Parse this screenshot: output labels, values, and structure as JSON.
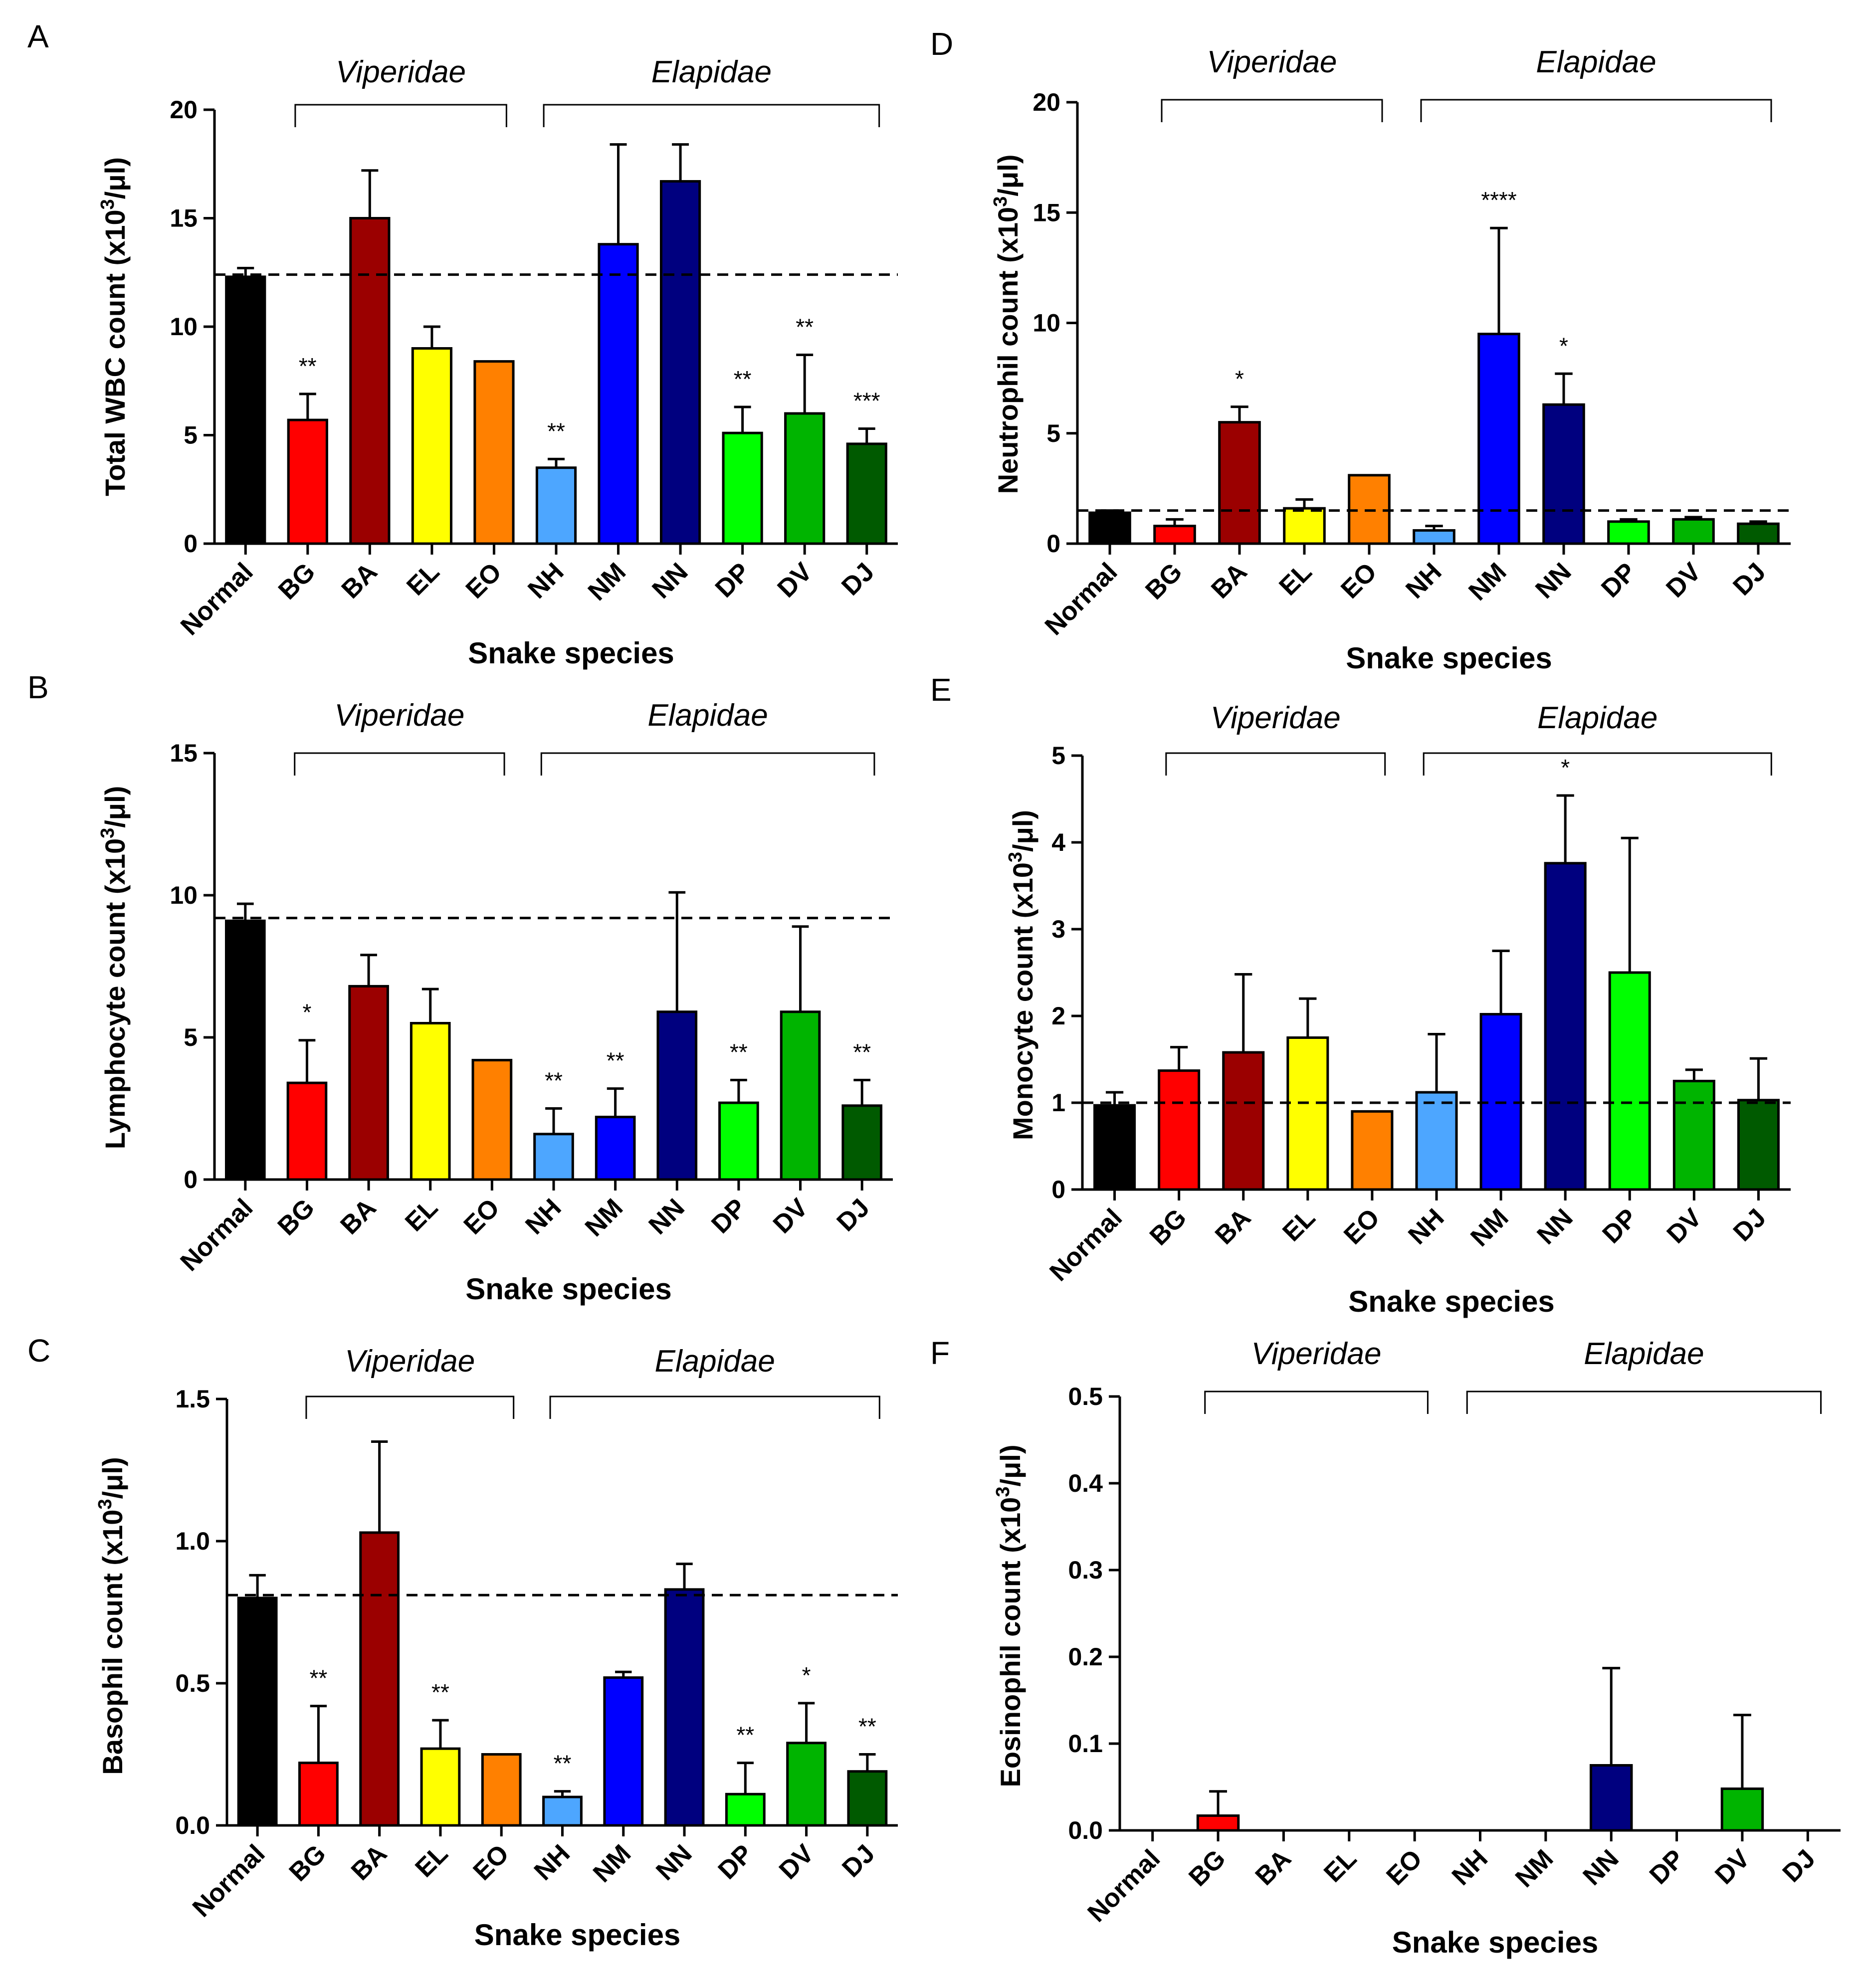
{
  "figure": {
    "categories": [
      "Normal",
      "BG",
      "BA",
      "EL",
      "EO",
      "NH",
      "NM",
      "NN",
      "DP",
      "DV",
      "DJ"
    ],
    "bar_colors": [
      "#000000",
      "#ff0000",
      "#9b0000",
      "#ffff00",
      "#ff8000",
      "#4da6ff",
      "#0000ff",
      "#00007f",
      "#00ff00",
      "#00b400",
      "#005a00"
    ],
    "x_axis_title": "Snake species",
    "families": [
      {
        "label": "Viperidae",
        "from": 1,
        "to": 4
      },
      {
        "label": "Elapidae",
        "from": 5,
        "to": 10
      }
    ]
  },
  "chart_data": [
    {
      "panel": "A",
      "type": "bar",
      "ylabel_prefix": "Total WBC count (x10",
      "ylabel_sup": "3",
      "ylabel_suffix": "/μl)",
      "ylim": [
        0,
        20
      ],
      "yticks": [
        "0",
        "5",
        "10",
        "15",
        "20"
      ],
      "reference_line": 12.4,
      "values": [
        12.3,
        5.7,
        15.0,
        9.0,
        8.4,
        3.5,
        13.8,
        16.7,
        5.1,
        6.0,
        4.6
      ],
      "errors": [
        0.4,
        1.2,
        2.2,
        1.0,
        0.0,
        0.4,
        4.6,
        1.7,
        1.2,
        2.7,
        0.7
      ],
      "significance": [
        "",
        "**",
        "",
        "",
        "",
        "**",
        "",
        "",
        "**",
        "**",
        "***"
      ]
    },
    {
      "panel": "B",
      "type": "bar",
      "ylabel_prefix": "Lymphocyte count (x10",
      "ylabel_sup": "3",
      "ylabel_suffix": "/μl)",
      "ylim": [
        0,
        15
      ],
      "yticks": [
        "0",
        "5",
        "10",
        "15"
      ],
      "reference_line": 9.2,
      "values": [
        9.1,
        3.4,
        6.8,
        5.5,
        4.2,
        1.6,
        2.2,
        5.9,
        2.7,
        5.9,
        2.6
      ],
      "errors": [
        0.6,
        1.5,
        1.1,
        1.2,
        0.0,
        0.9,
        1.0,
        4.2,
        0.8,
        3.0,
        0.9
      ],
      "significance": [
        "",
        "*",
        "",
        "",
        "",
        "**",
        "**",
        "",
        "**",
        "",
        "**"
      ]
    },
    {
      "panel": "C",
      "type": "bar",
      "ylabel_prefix": "Basophil count (x10",
      "ylabel_sup": "3",
      "ylabel_suffix": "/μl)",
      "ylim": [
        0,
        1.5
      ],
      "yticks": [
        "0.0",
        "0.5",
        "1.0",
        "1.5"
      ],
      "reference_line": 0.81,
      "values": [
        0.8,
        0.22,
        1.03,
        0.27,
        0.25,
        0.1,
        0.52,
        0.83,
        0.11,
        0.29,
        0.19
      ],
      "errors": [
        0.08,
        0.2,
        0.32,
        0.1,
        0.0,
        0.02,
        0.02,
        0.09,
        0.11,
        0.14,
        0.06
      ],
      "significance": [
        "",
        "**",
        "",
        "**",
        "",
        "**",
        "",
        "",
        "**",
        "*",
        "**"
      ]
    },
    {
      "panel": "D",
      "type": "bar",
      "ylabel_prefix": "Neutrophil count (x10",
      "ylabel_sup": "3",
      "ylabel_suffix": "/μl)",
      "ylim": [
        0,
        20
      ],
      "yticks": [
        "0",
        "5",
        "10",
        "15",
        "20"
      ],
      "reference_line": 1.5,
      "values": [
        1.4,
        0.8,
        5.5,
        1.6,
        3.1,
        0.6,
        9.5,
        6.3,
        1.0,
        1.1,
        0.9
      ],
      "errors": [
        0.1,
        0.3,
        0.7,
        0.4,
        0.0,
        0.2,
        4.8,
        1.4,
        0.1,
        0.1,
        0.1
      ],
      "significance": [
        "",
        "",
        "*",
        "",
        "",
        "",
        "****",
        "*",
        "",
        "",
        ""
      ]
    },
    {
      "panel": "E",
      "type": "bar",
      "ylabel_prefix": "Monocyte count (x10",
      "ylabel_sup": "3",
      "ylabel_suffix": "/μl)",
      "ylim": [
        0,
        5
      ],
      "yticks": [
        "0",
        "1",
        "2",
        "3",
        "4",
        "5"
      ],
      "reference_line": 1.0,
      "values": [
        0.97,
        1.37,
        1.58,
        1.75,
        0.9,
        1.12,
        2.02,
        3.76,
        2.5,
        1.25,
        1.03
      ],
      "errors": [
        0.15,
        0.27,
        0.9,
        0.45,
        0.0,
        0.67,
        0.73,
        0.78,
        1.55,
        0.13,
        0.48
      ],
      "significance": [
        "",
        "",
        "",
        "",
        "",
        "",
        "",
        "*",
        "",
        "",
        ""
      ]
    },
    {
      "panel": "F",
      "type": "bar",
      "ylabel_prefix": "Eosinophil count (x10",
      "ylabel_sup": "3",
      "ylabel_suffix": "/μl)",
      "ylim": [
        0,
        0.5
      ],
      "yticks": [
        "0.0",
        "0.1",
        "0.2",
        "0.3",
        "0.4",
        "0.5"
      ],
      "reference_line": null,
      "values": [
        0,
        0.017,
        0,
        0,
        0,
        0,
        0,
        0.075,
        0,
        0.048,
        0
      ],
      "errors": [
        0,
        0.028,
        0,
        0,
        0,
        0,
        0,
        0.112,
        0,
        0.085,
        0
      ],
      "significance": [
        "",
        "",
        "",
        "",
        "",
        "",
        "",
        "",
        "",
        "",
        ""
      ]
    }
  ]
}
